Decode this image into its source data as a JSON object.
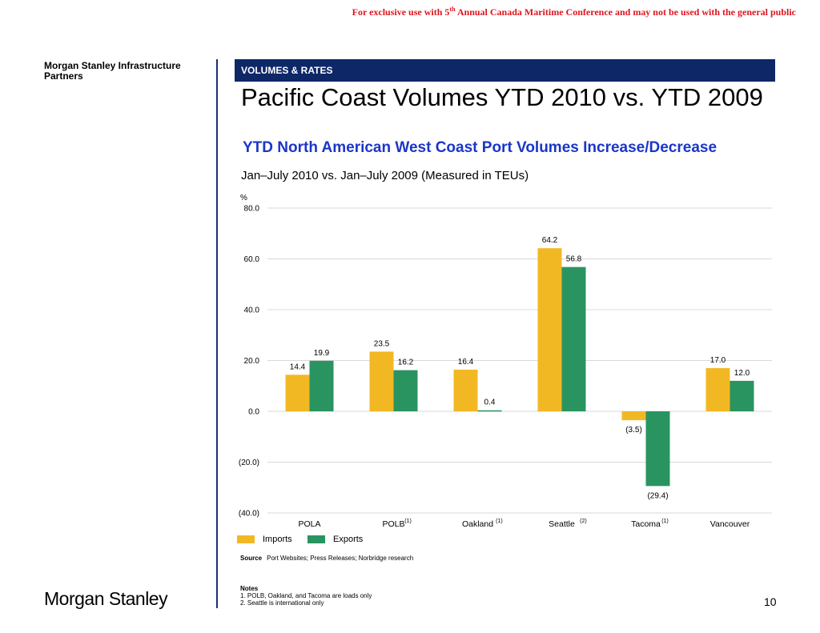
{
  "disclaimer": {
    "before": "For exclusive use with 5",
    "sup": "th",
    "after": " Annual Canada Maritime Conference and may not be used with the general public"
  },
  "sidebar": {
    "title": "Morgan Stanley Infrastructure Partners"
  },
  "header": {
    "section": "VOLUMES & RATES",
    "title": "Pacific Coast Volumes YTD 2010 vs. YTD 2009"
  },
  "chart_data": {
    "type": "bar",
    "title": "YTD North American West Coast Port Volumes Increase/Decrease",
    "subtitle": "Jan–July 2010 vs. Jan–July 2009 (Measured in TEUs)",
    "ylabel": "%",
    "ylim": [
      -40,
      80
    ],
    "yticks": [
      80,
      60,
      40,
      20,
      0,
      -20,
      -40
    ],
    "ytick_labels": [
      "80.0",
      "60.0",
      "40.0",
      "20.0",
      "0.0",
      "(20.0)",
      "(40.0)"
    ],
    "grid": true,
    "legend_position": "bottom-left",
    "categories": [
      "POLA",
      "POLB",
      "Oakland",
      "Seattle",
      "Tacoma",
      "Vancouver"
    ],
    "category_notes": [
      "",
      "(1)",
      "(1)",
      "(2)",
      "(1)",
      ""
    ],
    "series": [
      {
        "name": "Imports",
        "color": "#f2b824",
        "values": [
          14.4,
          23.5,
          16.4,
          64.2,
          -3.5,
          17.0
        ],
        "labels": [
          "14.4",
          "23.5",
          "16.4",
          "64.2",
          "(3.5)",
          "17.0"
        ]
      },
      {
        "name": "Exports",
        "color": "#2a9460",
        "values": [
          19.9,
          16.2,
          0.4,
          56.8,
          -29.4,
          12.0
        ],
        "labels": [
          "19.9",
          "16.2",
          "0.4",
          "56.8",
          "(29.4)",
          "12.0"
        ]
      }
    ]
  },
  "source": {
    "label": "Source",
    "text": "Port Websites; Press Releases; Norbridge research"
  },
  "notes": {
    "heading": "Notes",
    "items": [
      "1.   POLB, Oakland, and Tacoma are loads only",
      "2.   Seattle is international only"
    ]
  },
  "footer": {
    "logo": "Morgan Stanley",
    "page": "10"
  },
  "colors": {
    "header_bg": "#0d2767",
    "chart_title": "#1b36c8",
    "disclaimer": "#e0141e",
    "imports": "#f2b824",
    "exports": "#2a9460"
  }
}
